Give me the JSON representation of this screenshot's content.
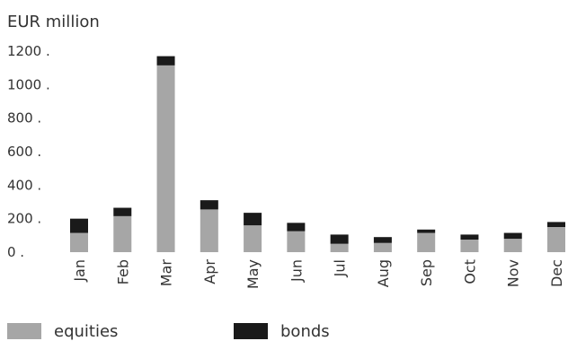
{
  "chart_data": {
    "type": "bar",
    "stacked": true,
    "unit_label": "EUR million",
    "categories": [
      "Jan",
      "Feb",
      "Mar",
      "Apr",
      "May",
      "Jun",
      "Jul",
      "Aug",
      "Sep",
      "Oct",
      "Nov",
      "Dec"
    ],
    "series": [
      {
        "name": "equities",
        "color": "#a6a6a6",
        "values": [
          115,
          215,
          1115,
          255,
          160,
          125,
          50,
          55,
          115,
          75,
          80,
          150
        ]
      },
      {
        "name": "bonds",
        "color": "#1a1a1a",
        "values": [
          85,
          50,
          55,
          55,
          75,
          50,
          55,
          35,
          20,
          30,
          35,
          30
        ]
      }
    ],
    "ylim": [
      0,
      1200
    ],
    "yticks": [
      "0",
      "200",
      "400",
      "600",
      "800",
      "1000",
      "1200"
    ],
    "legend_position": "bottom",
    "grid": false
  }
}
